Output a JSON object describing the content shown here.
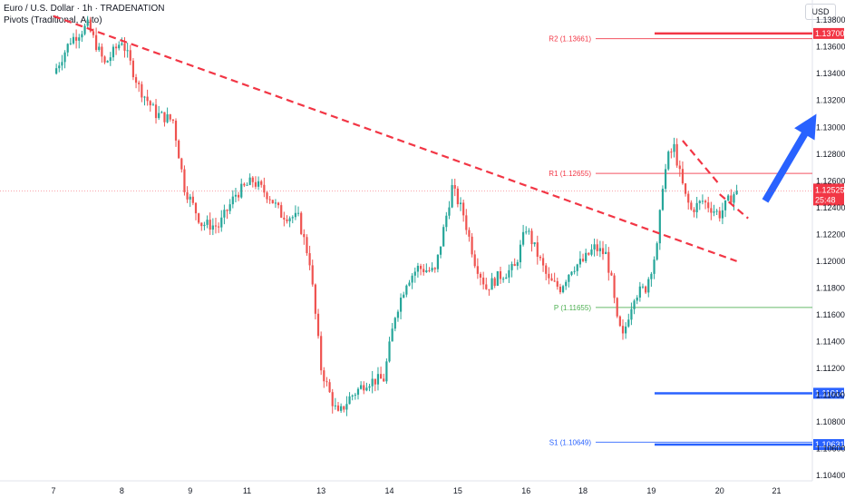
{
  "header": {
    "title": "Euro / U.S. Dollar · 1h · TRADENATION",
    "indicator": "Pivots (Traditional, Auto)",
    "currency": "USD"
  },
  "colors": {
    "up": "#26a69a",
    "down": "#ef5350",
    "trend": "#f23645",
    "arrow": "#2962ff",
    "pivot": "#4caf50",
    "resistance": "#f23645",
    "support": "#2962ff",
    "price_line": "#f23645"
  },
  "chart_data": {
    "type": "candlestick",
    "symbol": "Euro / U.S. Dollar",
    "timeframe": "1h",
    "ylim": [
      1.1036,
      1.1395
    ],
    "y_ticks": [
      "1.13800",
      "1.13600",
      "1.13400",
      "1.13200",
      "1.13000",
      "1.12800",
      "1.12600",
      "1.12400",
      "1.12200",
      "1.12000",
      "1.11800",
      "1.11600",
      "1.11400",
      "1.11200",
      "1.11000",
      "1.10800",
      "1.10600",
      "1.10400"
    ],
    "x_ticks": [
      {
        "label": "7",
        "bar": 0
      },
      {
        "label": "8",
        "bar": 24
      },
      {
        "label": "9",
        "bar": 48
      },
      {
        "label": "11",
        "bar": 68
      },
      {
        "label": "13",
        "bar": 94
      },
      {
        "label": "14",
        "bar": 118
      },
      {
        "label": "15",
        "bar": 142
      },
      {
        "label": "16",
        "bar": 166
      },
      {
        "label": "18",
        "bar": 186
      },
      {
        "label": "19",
        "bar": 210
      },
      {
        "label": "20",
        "bar": 234
      },
      {
        "label": "21",
        "bar": 254
      }
    ],
    "path": [
      [
        0,
        1.134
      ],
      [
        6,
        1.1365
      ],
      [
        12,
        1.1376
      ],
      [
        18,
        1.1347
      ],
      [
        24,
        1.1365
      ],
      [
        30,
        1.133
      ],
      [
        36,
        1.131
      ],
      [
        42,
        1.1305
      ],
      [
        46,
        1.1255
      ],
      [
        52,
        1.1228
      ],
      [
        58,
        1.1226
      ],
      [
        64,
        1.125
      ],
      [
        70,
        1.126
      ],
      [
        76,
        1.1248
      ],
      [
        80,
        1.1235
      ],
      [
        86,
        1.1232
      ],
      [
        90,
        1.12
      ],
      [
        94,
        1.112
      ],
      [
        98,
        1.1095
      ],
      [
        100,
        1.1085
      ],
      [
        104,
        1.1098
      ],
      [
        110,
        1.111
      ],
      [
        116,
        1.1112
      ],
      [
        120,
        1.116
      ],
      [
        124,
        1.1185
      ],
      [
        128,
        1.1195
      ],
      [
        134,
        1.1192
      ],
      [
        140,
        1.1255
      ],
      [
        144,
        1.1235
      ],
      [
        148,
        1.12
      ],
      [
        152,
        1.118
      ],
      [
        156,
        1.1188
      ],
      [
        162,
        1.1195
      ],
      [
        166,
        1.1225
      ],
      [
        170,
        1.1205
      ],
      [
        174,
        1.1185
      ],
      [
        178,
        1.118
      ],
      [
        182,
        1.1195
      ],
      [
        186,
        1.12
      ],
      [
        190,
        1.121
      ],
      [
        194,
        1.1205
      ],
      [
        196,
        1.1185
      ],
      [
        198,
        1.1155
      ],
      [
        200,
        1.1143
      ],
      [
        202,
        1.116
      ],
      [
        204,
        1.1175
      ],
      [
        208,
        1.118
      ],
      [
        212,
        1.121
      ],
      [
        214,
        1.1258
      ],
      [
        216,
        1.1278
      ],
      [
        218,
        1.1285
      ],
      [
        220,
        1.1265
      ],
      [
        222,
        1.1248
      ],
      [
        224,
        1.1238
      ],
      [
        228,
        1.1245
      ],
      [
        232,
        1.1238
      ],
      [
        234,
        1.1235
      ],
      [
        238,
        1.1248
      ],
      [
        240,
        1.12525
      ]
    ],
    "current_price": {
      "label": "1.12525",
      "countdown": "25:48",
      "value": 1.12525
    },
    "pivots": [
      {
        "name": "R2",
        "label": "R2 (1.13661)",
        "value": 1.13661,
        "type": "resistance"
      },
      {
        "name": "R1",
        "label": "R1 (1.12655)",
        "value": 1.12655,
        "type": "resistance"
      },
      {
        "name": "P",
        "label": "P (1.11655)",
        "value": 1.11655,
        "type": "pivot"
      },
      {
        "name": "S1",
        "label": "S1 (1.10649)",
        "value": 1.10649,
        "type": "support"
      }
    ],
    "levels": [
      {
        "label": "1.13700",
        "value": 1.137,
        "color": "#f23645"
      },
      {
        "label": "1.11014",
        "value": 1.11014,
        "color": "#2962ff"
      },
      {
        "label": "1.10631",
        "value": 1.10631,
        "color": "#2962ff"
      }
    ],
    "trendlines": [
      {
        "from": [
          0,
          1.1383
        ],
        "to": [
          240,
          1.12
        ],
        "style": "dashed",
        "color": "#f23645"
      },
      {
        "from": [
          221,
          1.129
        ],
        "to": [
          234,
          1.1257
        ],
        "style": "dashed",
        "color": "#f23645"
      },
      {
        "from": [
          234,
          1.125
        ],
        "to": [
          244,
          1.1232
        ],
        "style": "dashed",
        "color": "#f23645"
      }
    ],
    "arrow": {
      "from": [
        250,
        1.1245
      ],
      "to": [
        268,
        1.131
      ],
      "color": "#2962ff"
    }
  }
}
